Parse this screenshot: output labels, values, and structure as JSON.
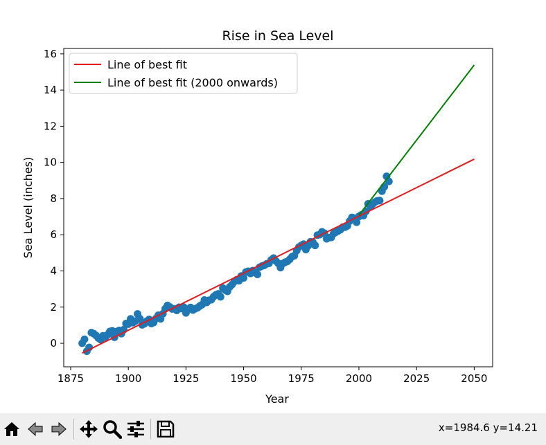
{
  "chart_data": {
    "type": "scatter",
    "title": "Rise in Sea Level",
    "xlabel": "Year",
    "ylabel": "Sea Level (inches)",
    "xlim": [
      1872,
      2058
    ],
    "ylim": [
      -1.3,
      16.3
    ],
    "xticks": [
      1875,
      1900,
      1925,
      1950,
      1975,
      2000,
      2025,
      2050
    ],
    "yticks": [
      0,
      2,
      4,
      6,
      8,
      10,
      12,
      14,
      16
    ],
    "grid": false,
    "legend_position": "upper left",
    "scatter": {
      "color": "#1f77b4",
      "x": [
        1880,
        1881,
        1882,
        1883,
        1884,
        1885,
        1886,
        1887,
        1888,
        1889,
        1890,
        1891,
        1892,
        1893,
        1894,
        1895,
        1896,
        1897,
        1898,
        1899,
        1900,
        1901,
        1902,
        1903,
        1904,
        1905,
        1906,
        1907,
        1908,
        1909,
        1910,
        1911,
        1912,
        1913,
        1914,
        1915,
        1916,
        1917,
        1918,
        1919,
        1920,
        1921,
        1922,
        1923,
        1924,
        1925,
        1926,
        1927,
        1928,
        1929,
        1930,
        1931,
        1932,
        1933,
        1934,
        1935,
        1936,
        1937,
        1938,
        1939,
        1940,
        1941,
        1942,
        1943,
        1944,
        1945,
        1946,
        1947,
        1948,
        1949,
        1950,
        1951,
        1952,
        1953,
        1954,
        1955,
        1956,
        1957,
        1958,
        1959,
        1960,
        1961,
        1962,
        1963,
        1964,
        1965,
        1966,
        1967,
        1968,
        1969,
        1970,
        1971,
        1972,
        1973,
        1974,
        1975,
        1976,
        1977,
        1978,
        1979,
        1980,
        1981,
        1982,
        1983,
        1984,
        1985,
        1986,
        1987,
        1988,
        1989,
        1990,
        1991,
        1992,
        1993,
        1994,
        1995,
        1996,
        1997,
        1998,
        1999,
        2000,
        2001,
        2002,
        2003,
        2004,
        2005,
        2006,
        2007,
        2008,
        2009,
        2010,
        2011,
        2012,
        2013
      ],
      "y": [
        0.0,
        0.22,
        -0.44,
        -0.23,
        0.59,
        0.53,
        0.43,
        0.29,
        0.2,
        0.41,
        0.33,
        0.47,
        0.65,
        0.69,
        0.33,
        0.65,
        0.71,
        0.53,
        0.75,
        1.09,
        1.06,
        1.35,
        1.14,
        1.22,
        1.62,
        1.36,
        1.02,
        1.08,
        1.22,
        1.32,
        1.09,
        1.15,
        1.37,
        1.55,
        1.35,
        1.63,
        1.91,
        2.09,
        2.01,
        1.9,
        1.91,
        1.82,
        1.99,
        1.92,
        2.0,
        1.68,
        1.88,
        1.98,
        1.84,
        1.91,
        1.96,
        2.06,
        2.14,
        2.39,
        2.26,
        2.38,
        2.41,
        2.58,
        2.68,
        2.73,
        2.57,
        3.05,
        2.94,
        2.87,
        3.12,
        3.25,
        3.41,
        3.51,
        3.46,
        3.72,
        3.61,
        3.94,
        3.98,
        3.86,
        4.02,
        3.91,
        3.81,
        4.21,
        4.27,
        4.31,
        4.39,
        4.42,
        4.61,
        4.71,
        4.55,
        4.42,
        4.18,
        4.41,
        4.48,
        4.53,
        4.64,
        4.79,
        4.84,
        5.12,
        5.32,
        5.41,
        5.48,
        5.18,
        5.39,
        5.61,
        5.59,
        5.41,
        5.98,
        6.01,
        6.16,
        6.09,
        5.78,
        5.84,
        5.85,
        6.06,
        6.14,
        6.21,
        6.28,
        6.42,
        6.42,
        6.49,
        6.76,
        6.96,
        6.92,
        6.69,
        7.01,
        7.1,
        7.06,
        7.29,
        7.71,
        7.55,
        7.7,
        7.81,
        7.88,
        7.89,
        8.41,
        8.65,
        9.23,
        8.95
      ]
    },
    "series": [
      {
        "name": "Line of best fit",
        "color": "#e41a1c",
        "x": [
          1880,
          2050
        ],
        "y": [
          -0.54,
          10.18
        ]
      },
      {
        "name": "Line of best fit (2000 onwards)",
        "color": "#008000",
        "x": [
          2000,
          2050
        ],
        "y": [
          7.08,
          15.38
        ]
      }
    ]
  },
  "toolbar": {
    "coords": "x=1984.6 y=14.21",
    "icons": [
      "home-icon",
      "back-icon",
      "forward-icon",
      "pan-icon",
      "zoom-icon",
      "configure-subplots-icon",
      "save-icon"
    ]
  }
}
